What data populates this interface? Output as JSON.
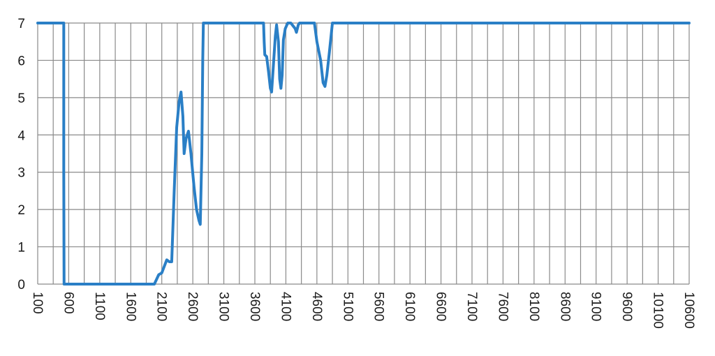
{
  "chart_data": {
    "type": "line",
    "title": "",
    "xlabel": "",
    "ylabel": "",
    "xlim": [
      100,
      10600
    ],
    "ylim": [
      0,
      7
    ],
    "x_step": 250,
    "grid": true,
    "legend": "none",
    "x_tick_labels": [
      "100",
      "600",
      "1100",
      "1600",
      "2100",
      "2600",
      "3100",
      "3600",
      "4100",
      "4600",
      "5100",
      "5600",
      "6100",
      "6600",
      "7100",
      "7600",
      "8100",
      "8600",
      "9100",
      "9600",
      "10100",
      "10600"
    ],
    "y_tick_labels": [
      "0",
      "1",
      "2",
      "3",
      "4",
      "5",
      "6",
      "7"
    ],
    "series": [
      {
        "color": "#2a7fc6",
        "points": [
          [
            100,
            7
          ],
          [
            520,
            7
          ],
          [
            520,
            3
          ],
          [
            525,
            0
          ],
          [
            1980,
            0
          ],
          [
            2050,
            0.25
          ],
          [
            2100,
            0.3
          ],
          [
            2180,
            0.65
          ],
          [
            2220,
            0.6
          ],
          [
            2260,
            0.6
          ],
          [
            2300,
            2.5
          ],
          [
            2340,
            4.2
          ],
          [
            2380,
            4.9
          ],
          [
            2410,
            5.15
          ],
          [
            2440,
            4.5
          ],
          [
            2460,
            3.5
          ],
          [
            2490,
            3.9
          ],
          [
            2530,
            4.1
          ],
          [
            2570,
            3.5
          ],
          [
            2620,
            2.6
          ],
          [
            2660,
            2.0
          ],
          [
            2700,
            1.7
          ],
          [
            2720,
            1.6
          ],
          [
            2745,
            3.5
          ],
          [
            2760,
            6.0
          ],
          [
            2770,
            7
          ],
          [
            3740,
            7
          ],
          [
            3750,
            6.5
          ],
          [
            3760,
            6.15
          ],
          [
            3790,
            6.1
          ],
          [
            3820,
            5.7
          ],
          [
            3850,
            5.25
          ],
          [
            3870,
            5.15
          ],
          [
            3900,
            5.9
          ],
          [
            3930,
            6.65
          ],
          [
            3950,
            6.95
          ],
          [
            3980,
            6.5
          ],
          [
            4000,
            5.5
          ],
          [
            4020,
            5.25
          ],
          [
            4040,
            5.6
          ],
          [
            4060,
            6.55
          ],
          [
            4090,
            6.85
          ],
          [
            4130,
            7
          ],
          [
            4180,
            7
          ],
          [
            4250,
            6.85
          ],
          [
            4270,
            6.75
          ],
          [
            4300,
            6.95
          ],
          [
            4320,
            7
          ],
          [
            4560,
            7
          ],
          [
            4600,
            6.5
          ],
          [
            4660,
            6.0
          ],
          [
            4700,
            5.4
          ],
          [
            4730,
            5.3
          ],
          [
            4760,
            5.6
          ],
          [
            4800,
            6.2
          ],
          [
            4850,
            7
          ],
          [
            10600,
            7
          ]
        ]
      }
    ]
  }
}
